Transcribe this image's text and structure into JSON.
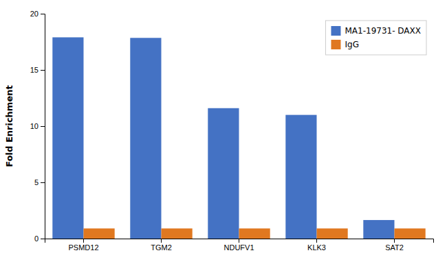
{
  "chart_data": {
    "type": "bar",
    "categories": [
      "PSMD12",
      "TGM2",
      "NDUFV1",
      "KLK3",
      "SAT2"
    ],
    "series": [
      {
        "name": "MA1-19731- DAXX",
        "color": "#4472C4",
        "values": [
          17.9,
          17.85,
          11.6,
          11.0,
          1.65
        ]
      },
      {
        "name": "IgG",
        "color": "#E07820",
        "values": [
          0.9,
          0.9,
          0.9,
          0.9,
          0.9
        ]
      }
    ],
    "ylabel": "Fold Enrichment",
    "ylim": [
      0,
      20
    ],
    "yticks": [
      0,
      5,
      10,
      15,
      20
    ],
    "grid": false,
    "legend": "upper right"
  }
}
